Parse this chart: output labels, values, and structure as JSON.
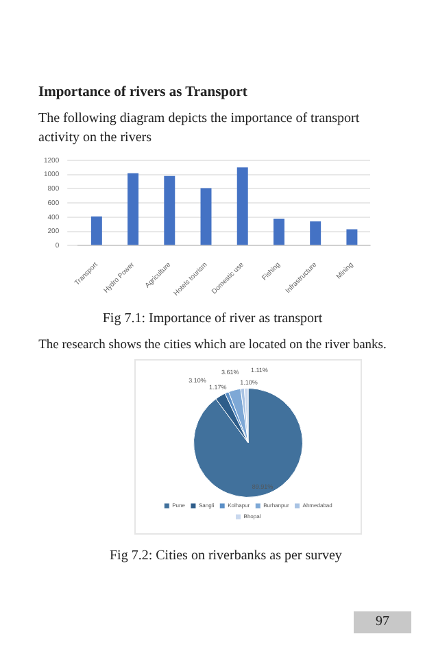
{
  "chart_data": [
    {
      "type": "bar",
      "title": "Importance of rivers as Transport",
      "subtitle": "The following diagram depicts  the importance of transport activity on the rivers",
      "categories": [
        "Transport",
        "Hydro Power",
        "Agriculture",
        "Hotels tourism",
        "Domestic use",
        "Fishing",
        "Infrastructure",
        "Mining"
      ],
      "values": [
        410,
        1020,
        980,
        810,
        1100,
        380,
        340,
        230
      ],
      "color": "#4472c4",
      "ylim": [
        0,
        1200
      ],
      "yticks": [
        0,
        200,
        400,
        600,
        800,
        1000,
        1200
      ],
      "grid": "y",
      "annotations": [
        "Fig 7.1: Importance of river as transport"
      ]
    },
    {
      "type": "pie",
      "subtitle": "The research shows the cities which are located on the river banks.",
      "categories": [
        "Pune",
        "Sangli",
        "Kolhapur",
        "Burhanpur",
        "Ahmedabad",
        "Bhopal"
      ],
      "values": [
        89.91,
        3.1,
        1.17,
        3.61,
        1.1,
        1.11
      ],
      "colors": [
        "#41719c",
        "#2e5d8a",
        "#5b8fc7",
        "#7ea8d6",
        "#a9c3e3",
        "#c9d8ee"
      ],
      "value_labels": [
        "89.91%",
        "3.10%",
        "1.17%",
        "3.61%",
        "1.10%",
        "1.11%"
      ],
      "legend": "bottom",
      "annotations": [
        "Fig 7.2: Cities on riverbanks as per survey",
        "97"
      ]
    }
  ]
}
